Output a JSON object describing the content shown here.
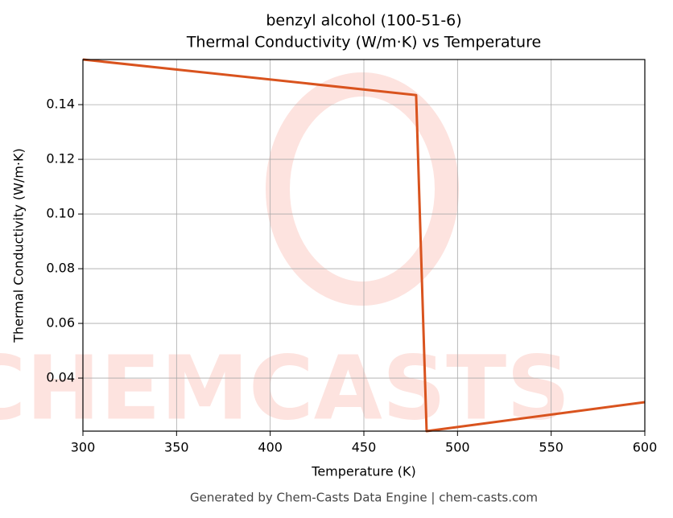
{
  "chart_data": {
    "type": "line",
    "title": "benzyl alcohol (100-51-6)",
    "subtitle": "Thermal Conductivity (W/m·K) vs Temperature",
    "xlabel": "Temperature (K)",
    "ylabel": "Thermal Conductivity (W/m·K)",
    "footer": "Generated by Chem-Casts Data Engine | chem-casts.com",
    "watermark": "CHEMCASTS",
    "x": [
      300,
      477.9,
      483.5,
      600
    ],
    "values": [
      0.1565,
      0.1435,
      0.0206,
      0.0312
    ],
    "color": "#d9531e",
    "xlim": [
      300,
      600
    ],
    "xticks": [
      300,
      350,
      400,
      450,
      500,
      550,
      600
    ],
    "ylim": [
      0.0206,
      0.1565
    ],
    "yticks": [
      {
        "value": 0.04,
        "label": "0.04"
      },
      {
        "value": 0.06,
        "label": "0.06"
      },
      {
        "value": 0.08,
        "label": "0.08"
      },
      {
        "value": 0.1,
        "label": "0.10"
      },
      {
        "value": 0.12,
        "label": "0.12"
      },
      {
        "value": 0.14,
        "label": "0.14"
      }
    ],
    "grid": true
  }
}
